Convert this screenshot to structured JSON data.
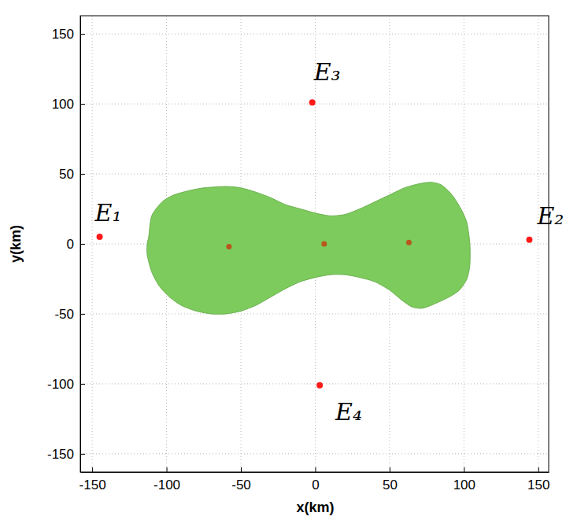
{
  "chart_data": {
    "type": "scatter",
    "x_label": "x(km)",
    "y_label": "y(km)",
    "xlim": [
      -158,
      157
    ],
    "ylim": [
      -163,
      163
    ],
    "xticks": [
      -150,
      -100,
      -50,
      0,
      50,
      100,
      150
    ],
    "yticks": [
      -150,
      -100,
      -50,
      0,
      50,
      100,
      150
    ],
    "grid": true,
    "series": [
      {
        "type": "polygon",
        "color": "#7ccb5c",
        "x": [
          -112,
          -110,
          -103,
          -95,
          -85,
          -75,
          -60,
          -50,
          -40,
          -30,
          -20,
          -10,
          0,
          10,
          20,
          30,
          40,
          50,
          60,
          70,
          78,
          85,
          92,
          98,
          102,
          104,
          104,
          102,
          97,
          90,
          80,
          72,
          65,
          58,
          50,
          40,
          30,
          20,
          10,
          0,
          -10,
          -20,
          -30,
          -40,
          -50,
          -60,
          -70,
          -80,
          -90,
          -98,
          -105,
          -110,
          -113,
          -113
        ],
        "y": [
          5,
          20,
          30,
          35,
          38,
          40,
          41,
          40,
          37,
          33,
          28,
          25,
          22,
          20,
          21,
          25,
          30,
          35,
          40,
          43,
          44,
          42,
          35,
          25,
          15,
          0,
          -15,
          -25,
          -33,
          -38,
          -43,
          -46,
          -45,
          -40,
          -33,
          -27,
          -24,
          -22,
          -22,
          -24,
          -27,
          -32,
          -38,
          -44,
          -48,
          -50,
          -50,
          -48,
          -44,
          -38,
          -30,
          -20,
          -8,
          0
        ]
      },
      {
        "type": "scatter",
        "color": "#ff1a1a",
        "marker": "circle",
        "x": [
          -145,
          144,
          -2,
          3
        ],
        "y": [
          5,
          3,
          101,
          -101
        ],
        "labels": [
          "E₁",
          "E₂",
          "E₃",
          "E₄"
        ]
      },
      {
        "type": "scatter",
        "color": "#b8561c",
        "marker": "circle",
        "x": [
          -58,
          6,
          63
        ],
        "y": [
          -2,
          0,
          1
        ]
      }
    ]
  }
}
